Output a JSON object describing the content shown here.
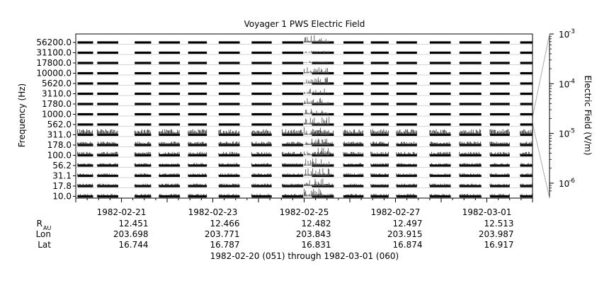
{
  "chart_data": {
    "type": "heatmap",
    "title": "Voyager 1 PWS Electric Field",
    "ylabel": "Frequency (Hz)",
    "colorbar_label": "Electric Field (V/m)",
    "colorbar_ticks": [
      {
        "base": "10",
        "exp": "-3"
      },
      {
        "base": "10",
        "exp": "-4"
      },
      {
        "base": "10",
        "exp": "-5"
      },
      {
        "base": "10",
        "exp": "-6"
      }
    ],
    "y_channels": [
      "56200.0",
      "31100.0",
      "17800.0",
      "10000.0",
      "5620.0",
      "3110.0",
      "1780.0",
      "1000.0",
      "562.0",
      "311.0",
      "178.0",
      "100.0",
      "56.2",
      "31.1",
      "17.8",
      "10.0"
    ],
    "x_ticks": [
      "1982-02-21",
      "1982-02-23",
      "1982-02-25",
      "1982-02-27",
      "1982-03-01"
    ],
    "ephemeris": [
      {
        "label": "R",
        "sub": "AU",
        "values": [
          "12.451",
          "12.466",
          "12.482",
          "12.497",
          "12.513"
        ]
      },
      {
        "label": "Lon",
        "sub": "",
        "values": [
          "203.698",
          "203.771",
          "203.843",
          "203.915",
          "203.987"
        ]
      },
      {
        "label": "Lat",
        "sub": "",
        "values": [
          "16.744",
          "16.787",
          "16.831",
          "16.874",
          "16.917"
        ]
      }
    ],
    "xlabel": "1982-02-20 (051) through 1982-03-01 (060)",
    "x_range_days": [
      0,
      10
    ],
    "x_tick_days": [
      1,
      3,
      5,
      7,
      9
    ],
    "coverage_days": [
      [
        0.04,
        0.38
      ],
      [
        0.47,
        0.93
      ],
      [
        1.29,
        1.65
      ],
      [
        1.82,
        2.28
      ],
      [
        2.46,
        2.87
      ],
      [
        3.13,
        3.59
      ],
      [
        3.85,
        4.29
      ],
      [
        4.52,
        4.98
      ],
      [
        5.17,
        5.65
      ],
      [
        5.86,
        6.3
      ],
      [
        6.46,
        6.85
      ],
      [
        7.02,
        7.47
      ],
      [
        7.75,
        8.21
      ],
      [
        8.4,
        8.88
      ],
      [
        9.07,
        9.5
      ],
      [
        9.73,
        10.0
      ]
    ],
    "burst_days": [
      5.0,
      5.55
    ],
    "colorscale": "log",
    "color_range": [
      1e-06,
      0.001
    ],
    "grid": true
  }
}
